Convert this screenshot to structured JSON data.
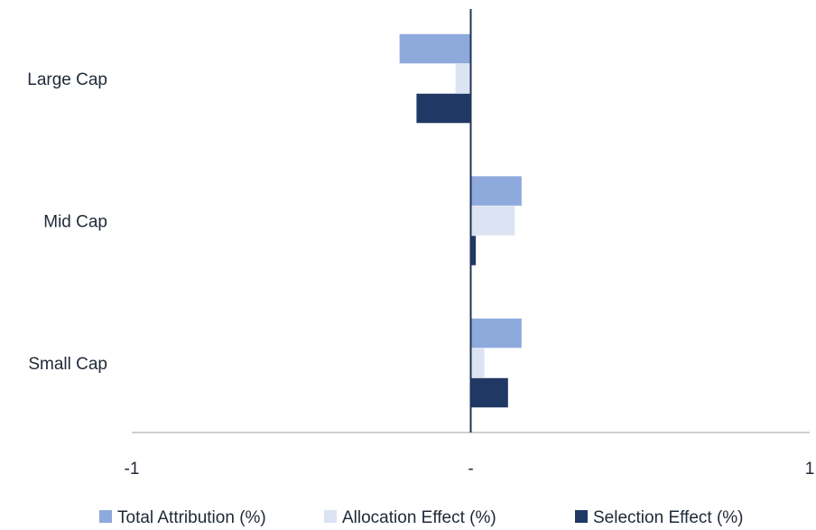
{
  "chart_data": {
    "type": "bar",
    "orientation": "horizontal",
    "categories": [
      "Large Cap",
      "Mid Cap",
      "Small Cap"
    ],
    "series": [
      {
        "name": "Total Attribution (%)",
        "values": [
          -0.21,
          0.15,
          0.15
        ],
        "color": "#8EA9DB"
      },
      {
        "name": "Allocation Effect (%)",
        "values": [
          -0.045,
          0.13,
          0.04
        ],
        "color": "#DCE3F3"
      },
      {
        "name": "Selection Effect (%)",
        "values": [
          -0.16,
          0.015,
          0.11
        ],
        "color": "#203864"
      }
    ],
    "xlim": [
      -1,
      1
    ],
    "x_ticks": [
      -1,
      0,
      1
    ],
    "x_tick_labels": [
      "-1",
      "-",
      "1"
    ],
    "grid": false,
    "legend_position": "bottom"
  }
}
